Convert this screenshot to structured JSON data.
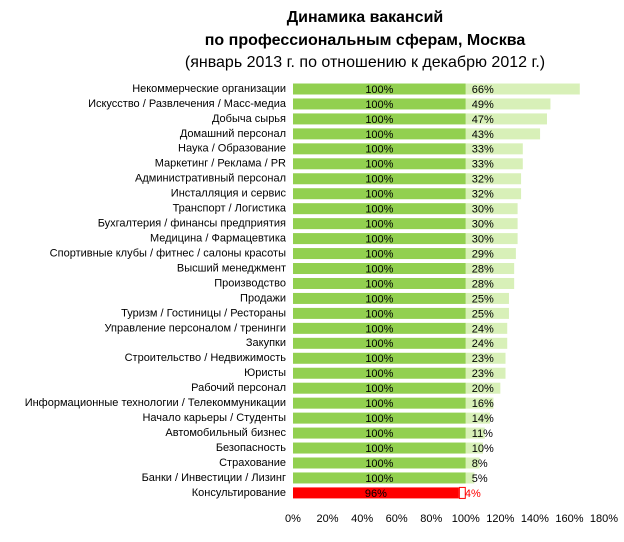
{
  "chart_data": {
    "type": "stacked-barh",
    "title": "Динамика вакансий",
    "subtitle": "по профессиональным сферам, Москва",
    "note": "(январь 2013 г. по отношению к декабрю 2012 г.)",
    "categories": [
      "Некоммерческие организации",
      "Искусство / Развлечения / Масс-медиа",
      "Добыча сырья",
      "Домашний персонал",
      "Наука / Образование",
      "Маркетинг / Реклама / PR",
      "Административный персонал",
      "Инсталляция и сервис",
      "Транспорт / Логистика",
      "Бухгалтерия / финансы предприятия",
      "Медицина / Фармацевтика",
      "Спортивные клубы / фитнес / салоны красоты",
      "Высший менеджмент",
      "Производство",
      "Продажи",
      "Туризм / Гостиницы / Рестораны",
      "Управление персоналом / тренинги",
      "Закупки",
      "Строительство / Недвижимость",
      "Юристы",
      "Рабочий персонал",
      "Информационные технологии / Телекоммуникации",
      "Начало карьеры / Студенты",
      "Автомобильный бизнес",
      "Безопасность",
      "Страхование",
      "Банки / Инвестиции / Лизинг",
      "Консультирование"
    ],
    "series": [
      {
        "values": [
          100,
          100,
          100,
          100,
          100,
          100,
          100,
          100,
          100,
          100,
          100,
          100,
          100,
          100,
          100,
          100,
          100,
          100,
          100,
          100,
          100,
          100,
          100,
          100,
          100,
          100,
          100,
          96
        ],
        "value_labels": [
          "100%",
          "100%",
          "100%",
          "100%",
          "100%",
          "100%",
          "100%",
          "100%",
          "100%",
          "100%",
          "100%",
          "100%",
          "100%",
          "100%",
          "100%",
          "100%",
          "100%",
          "100%",
          "100%",
          "100%",
          "100%",
          "100%",
          "100%",
          "100%",
          "100%",
          "100%",
          "100%",
          "96%"
        ],
        "colors": [
          "#92d050",
          "#92d050",
          "#92d050",
          "#92d050",
          "#92d050",
          "#92d050",
          "#92d050",
          "#92d050",
          "#92d050",
          "#92d050",
          "#92d050",
          "#92d050",
          "#92d050",
          "#92d050",
          "#92d050",
          "#92d050",
          "#92d050",
          "#92d050",
          "#92d050",
          "#92d050",
          "#92d050",
          "#92d050",
          "#92d050",
          "#92d050",
          "#92d050",
          "#92d050",
          "#92d050",
          "#ff0000"
        ],
        "label_colors": [
          "#000000",
          "#000000",
          "#000000",
          "#000000",
          "#000000",
          "#000000",
          "#000000",
          "#000000",
          "#000000",
          "#000000",
          "#000000",
          "#000000",
          "#000000",
          "#000000",
          "#000000",
          "#000000",
          "#000000",
          "#000000",
          "#000000",
          "#000000",
          "#000000",
          "#000000",
          "#000000",
          "#000000",
          "#000000",
          "#000000",
          "#000000",
          "#000000"
        ],
        "label_position": "center"
      },
      {
        "values": [
          66,
          49,
          47,
          43,
          33,
          33,
          32,
          32,
          30,
          30,
          30,
          29,
          28,
          28,
          25,
          25,
          24,
          24,
          23,
          23,
          20,
          16,
          14,
          11,
          10,
          8,
          5,
          4
        ],
        "value_labels": [
          "66%",
          "49%",
          "47%",
          "43%",
          "33%",
          "33%",
          "32%",
          "32%",
          "30%",
          "30%",
          "30%",
          "29%",
          "28%",
          "28%",
          "25%",
          "25%",
          "24%",
          "24%",
          "23%",
          "23%",
          "20%",
          "16%",
          "14%",
          "11%",
          "10%",
          "8%",
          "5%",
          "4%"
        ],
        "colors": [
          "#d8f0b8",
          "#d8f0b8",
          "#d8f0b8",
          "#d8f0b8",
          "#d8f0b8",
          "#d8f0b8",
          "#d8f0b8",
          "#d8f0b8",
          "#d8f0b8",
          "#d8f0b8",
          "#d8f0b8",
          "#d8f0b8",
          "#d8f0b8",
          "#d8f0b8",
          "#d8f0b8",
          "#d8f0b8",
          "#d8f0b8",
          "#d8f0b8",
          "#d8f0b8",
          "#d8f0b8",
          "#d8f0b8",
          "#d8f0b8",
          "#d8f0b8",
          "#d8f0b8",
          "#d8f0b8",
          "#d8f0b8",
          "#d8f0b8",
          "#ffffff"
        ],
        "label_colors": [
          "#000000",
          "#000000",
          "#000000",
          "#000000",
          "#000000",
          "#000000",
          "#000000",
          "#000000",
          "#000000",
          "#000000",
          "#000000",
          "#000000",
          "#000000",
          "#000000",
          "#000000",
          "#000000",
          "#000000",
          "#000000",
          "#000000",
          "#000000",
          "#000000",
          "#000000",
          "#000000",
          "#000000",
          "#000000",
          "#000000",
          "#000000",
          "#ff0000"
        ],
        "label_position": "inside-start"
      }
    ],
    "xlim": [
      0,
      180
    ],
    "xticks": [
      {
        "value": 0,
        "label": "0%"
      },
      {
        "value": 20,
        "label": "20%"
      },
      {
        "value": 40,
        "label": "40%"
      },
      {
        "value": 60,
        "label": "60%"
      },
      {
        "value": 80,
        "label": "80%"
      },
      {
        "value": 100,
        "label": "100%"
      },
      {
        "value": 120,
        "label": "120%"
      },
      {
        "value": 140,
        "label": "140%"
      },
      {
        "value": 160,
        "label": "160%"
      },
      {
        "value": 180,
        "label": "180%"
      }
    ],
    "grid": false
  }
}
